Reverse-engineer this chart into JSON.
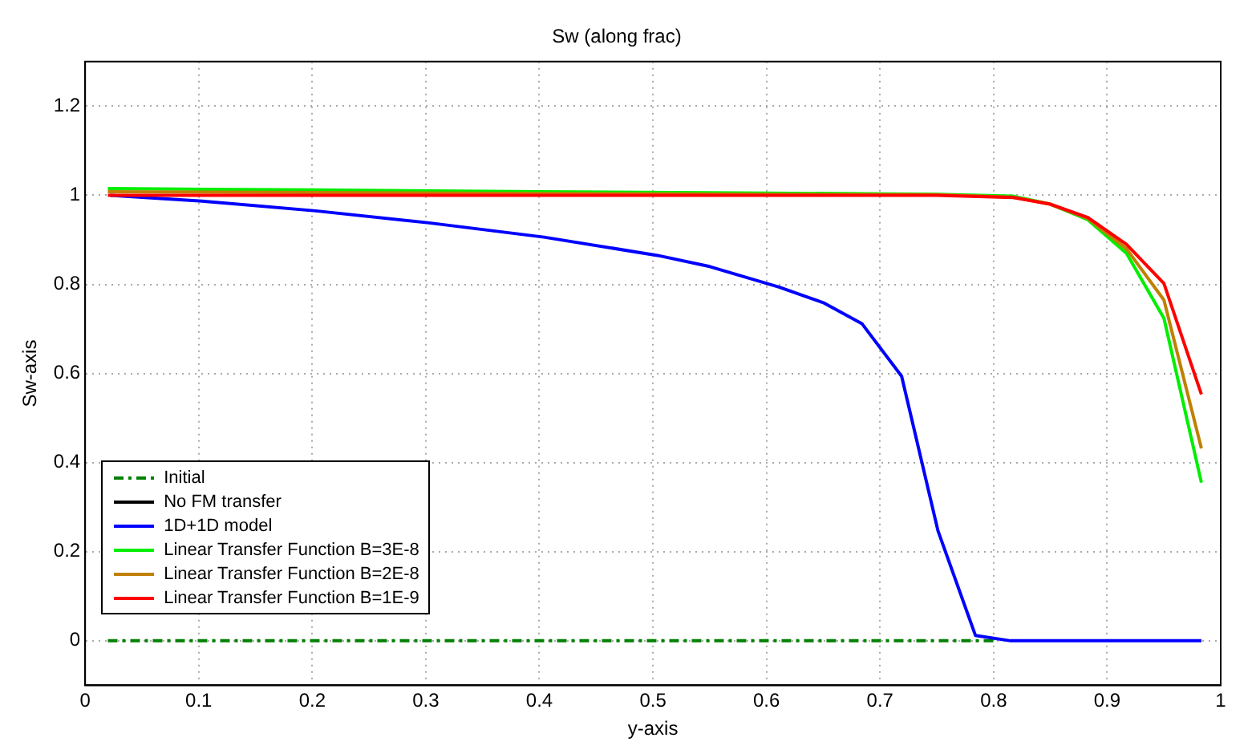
{
  "chart_data": {
    "type": "line",
    "title": "Sw (along frac)",
    "xlabel": "y-axis",
    "ylabel": "Sw-axis",
    "xlim": [
      0,
      1
    ],
    "xticks": [
      0,
      0.1,
      0.2,
      0.3,
      0.4,
      0.5,
      0.6,
      0.7,
      0.8,
      0.9,
      1
    ],
    "ylim": [
      -0.1,
      1.3
    ],
    "yticks": [
      0,
      0.2,
      0.4,
      0.6,
      0.8,
      1,
      1.2
    ],
    "grid": true,
    "legend": "bottom left",
    "marker": "none",
    "series": [
      {
        "name": "Initial",
        "color": "#008000",
        "line_style": "dashed",
        "x": [
          0.02,
          0.8
        ],
        "values": [
          0,
          0
        ]
      },
      {
        "name": "No FM transfer",
        "color": "#000000"
      },
      {
        "name": "1D+1D model",
        "color": "#0000ff",
        "x": [
          0.022,
          0.107,
          0.203,
          0.303,
          0.404,
          0.504,
          0.55,
          0.611,
          0.65,
          0.684,
          0.719,
          0.751,
          0.784,
          0.815,
          0.983
        ],
        "values": [
          1,
          0.986,
          0.965,
          0.938,
          0.906,
          0.865,
          0.84,
          0.794,
          0.759,
          0.712,
          0.594,
          0.247,
          0.012,
          0,
          0
        ]
      },
      {
        "name": "Linear Transfer Function B=3E-8",
        "color": "#00ee00",
        "x": [
          0.02,
          0.2,
          0.4,
          0.6,
          0.75,
          0.817,
          0.85,
          0.883,
          0.917,
          0.95,
          0.983
        ],
        "values": [
          1.015,
          1.012,
          1.008,
          1.005,
          1.002,
          0.998,
          0.98,
          0.945,
          0.87,
          0.724,
          0.355
        ]
      },
      {
        "name": "Linear Transfer Function B=2E-8",
        "color": "#c08000",
        "x": [
          0.02,
          0.2,
          0.4,
          0.6,
          0.75,
          0.817,
          0.85,
          0.883,
          0.917,
          0.95,
          0.983
        ],
        "values": [
          1.008,
          1.006,
          1.004,
          1.002,
          1.001,
          0.996,
          0.98,
          0.948,
          0.88,
          0.765,
          0.432
        ]
      },
      {
        "name": "Linear Transfer Function B=1E-9",
        "color": "#ff0000",
        "x": [
          0.02,
          0.2,
          0.4,
          0.6,
          0.75,
          0.817,
          0.85,
          0.883,
          0.917,
          0.95,
          0.983
        ],
        "values": [
          1,
          1,
          1,
          1,
          1,
          0.995,
          0.98,
          0.95,
          0.89,
          0.802,
          0.553
        ]
      }
    ]
  }
}
